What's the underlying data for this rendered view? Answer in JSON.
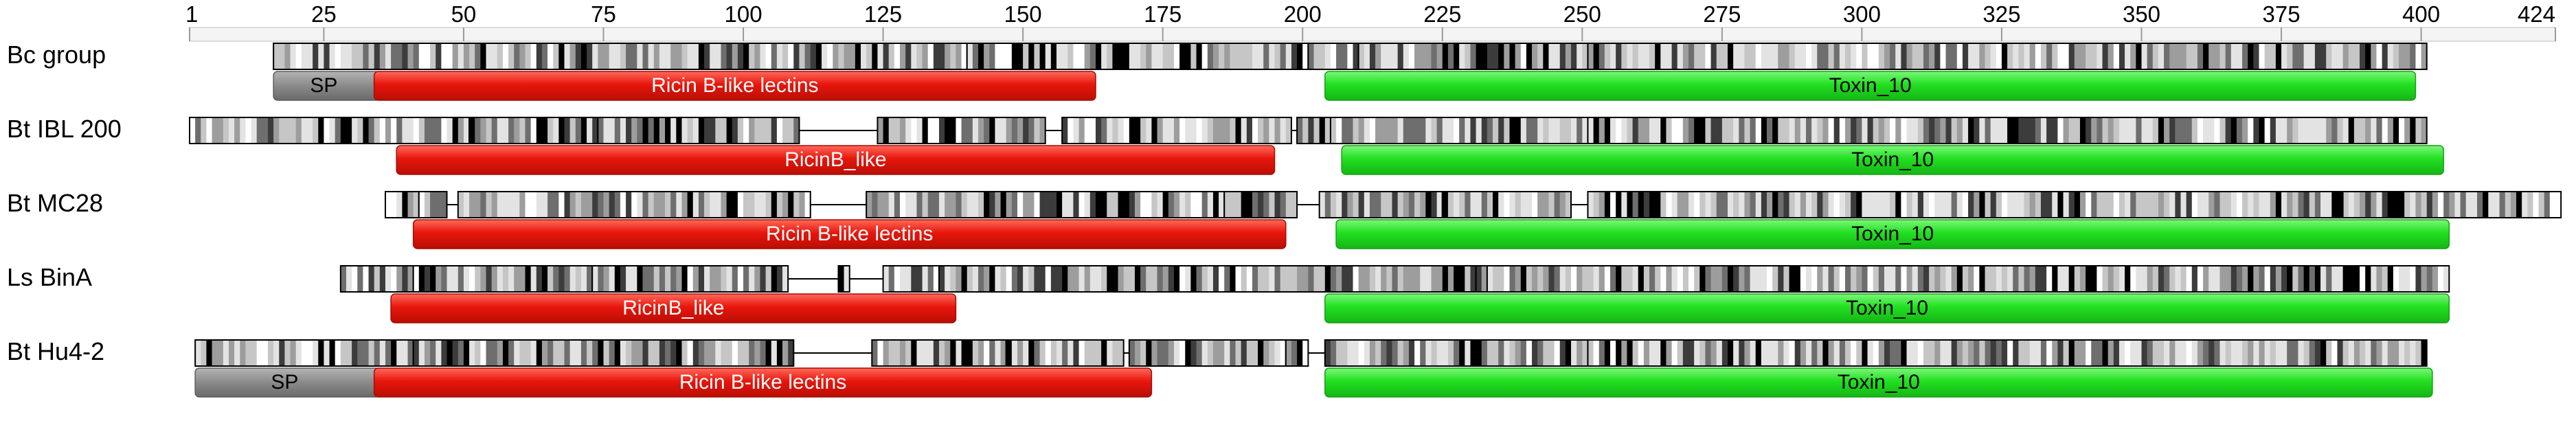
{
  "ruler": {
    "min": 1,
    "max": 424,
    "ticks": [
      {
        "pos": 1,
        "label": "1"
      },
      {
        "pos": 25,
        "label": "25"
      },
      {
        "pos": 50,
        "label": "50"
      },
      {
        "pos": 75,
        "label": "75"
      },
      {
        "pos": 100,
        "label": "100"
      },
      {
        "pos": 125,
        "label": "125"
      },
      {
        "pos": 150,
        "label": "150"
      },
      {
        "pos": 175,
        "label": "175"
      },
      {
        "pos": 200,
        "label": "200"
      },
      {
        "pos": 225,
        "label": "225"
      },
      {
        "pos": 250,
        "label": "250"
      },
      {
        "pos": 275,
        "label": "275"
      },
      {
        "pos": 300,
        "label": "300"
      },
      {
        "pos": 325,
        "label": "325"
      },
      {
        "pos": 350,
        "label": "350"
      },
      {
        "pos": 375,
        "label": "375"
      },
      {
        "pos": 400,
        "label": "400"
      },
      {
        "pos": 424,
        "label": "424"
      }
    ]
  },
  "colors": {
    "sp": "#8a8a8a",
    "ricin": "#e8160c",
    "toxin": "#22e021",
    "connector": "#000000"
  },
  "rows": [
    {
      "name": "Bc group",
      "seed": 11,
      "segments": [
        [
          16,
          139
        ],
        [
          140,
          200
        ],
        [
          201,
          209
        ],
        [
          210,
          250
        ],
        [
          251,
          400
        ]
      ],
      "domains": [
        {
          "type": "sp",
          "label": "SP",
          "start": 16,
          "end": 34
        },
        {
          "type": "ricin",
          "label": "Ricin B-like lectins",
          "start": 34,
          "end": 162
        },
        {
          "type": "toxin",
          "label": "Toxin_10",
          "start": 204,
          "end": 398
        }
      ]
    },
    {
      "name": "Bt IBL 200",
      "seed": 23,
      "segments": [
        [
          1,
          50
        ],
        [
          51,
          73
        ],
        [
          74,
          109
        ],
        [
          124,
          153
        ],
        [
          157,
          197
        ],
        [
          199,
          204
        ],
        [
          205,
          250
        ],
        [
          251,
          400
        ]
      ],
      "domains": [
        {
          "type": "ricin",
          "label": "RicinB_like",
          "start": 38,
          "end": 194
        },
        {
          "type": "toxin",
          "label": "Toxin_10",
          "start": 207,
          "end": 403
        }
      ]
    },
    {
      "name": "Bt MC28",
      "seed": 37,
      "segments": [
        [
          36,
          41
        ],
        [
          42,
          46
        ],
        [
          49,
          111
        ],
        [
          122,
          185
        ],
        [
          186,
          198
        ],
        [
          203,
          224
        ],
        [
          225,
          247
        ],
        [
          251,
          385
        ],
        [
          386,
          424
        ]
      ],
      "domains": [
        {
          "type": "ricin",
          "label": "Ricin B-like lectins",
          "start": 41,
          "end": 196
        },
        {
          "type": "toxin",
          "label": "Toxin_10",
          "start": 206,
          "end": 404
        }
      ]
    },
    {
      "name": "Ls BinA",
      "seed": 49,
      "segments": [
        [
          28,
          40
        ],
        [
          41,
          72
        ],
        [
          73,
          107
        ],
        [
          117,
          118
        ],
        [
          125,
          134
        ],
        [
          135,
          230
        ],
        [
          231,
          232
        ],
        [
          233,
          404
        ]
      ],
      "domains": [
        {
          "type": "ricin",
          "label": "RicinB_like",
          "start": 37,
          "end": 137
        },
        {
          "type": "toxin",
          "label": "Toxin_10",
          "start": 204,
          "end": 404
        }
      ]
    },
    {
      "name": "Bt Hu4-2",
      "seed": 61,
      "segments": [
        [
          2,
          40
        ],
        [
          41,
          108
        ],
        [
          123,
          146
        ],
        [
          147,
          167
        ],
        [
          169,
          196
        ],
        [
          197,
          200
        ],
        [
          204,
          250
        ],
        [
          251,
          400
        ]
      ],
      "domains": [
        {
          "type": "sp",
          "label": "SP",
          "start": 2,
          "end": 34
        },
        {
          "type": "ricin",
          "label": "Ricin B-like lectins",
          "start": 34,
          "end": 172
        },
        {
          "type": "toxin",
          "label": "Toxin_10",
          "start": 204,
          "end": 401
        }
      ]
    }
  ]
}
